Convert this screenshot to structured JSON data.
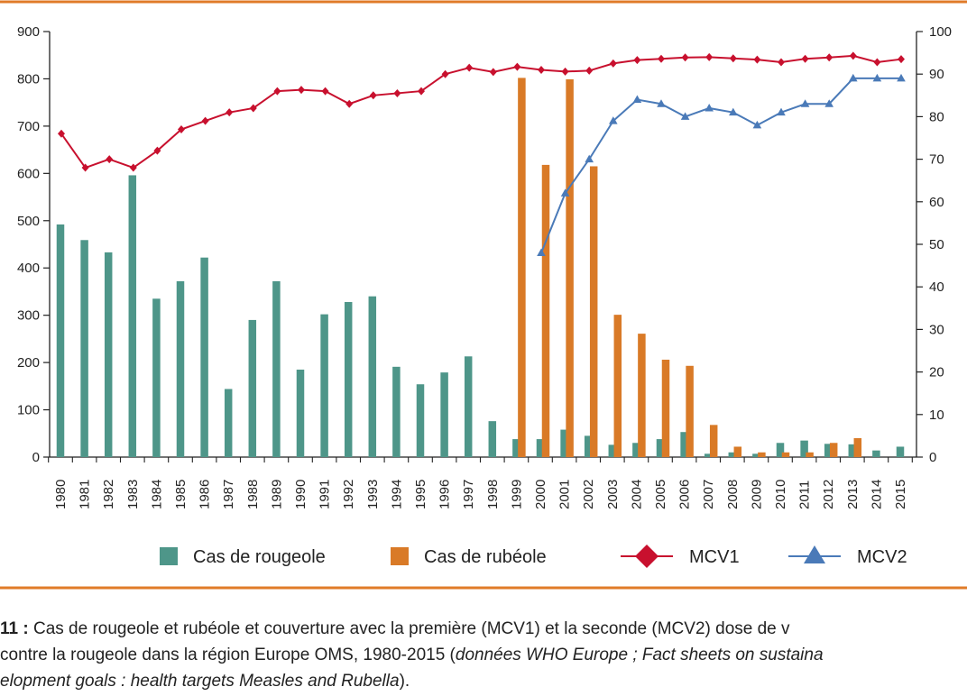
{
  "caption": {
    "figure_number": "11 :",
    "line1": " Cas de rougeole et rubéole et couverture avec la première (MCV1) et la seconde (MCV2) dose de v",
    "line2a": "contre la rougeole dans la région Europe OMS, 1980-2015 (",
    "line2b": "données WHO Europe ; Fact sheets on sustaina",
    "line3a": "elopment goals : health targets Measles and Rubella",
    "line3b": ")."
  },
  "colors": {
    "frame_orange": "#e07b28",
    "measles": "#4e9689",
    "rubella": "#d97a27",
    "mcv1": "#c8102e",
    "mcv2": "#4a7ab8",
    "axis": "#222222"
  },
  "chart_data": {
    "type": "bar",
    "categories": [
      "1980",
      "1981",
      "1982",
      "1983",
      "1984",
      "1985",
      "1986",
      "1987",
      "1988",
      "1989",
      "1990",
      "1991",
      "1992",
      "1993",
      "1994",
      "1995",
      "1996",
      "1997",
      "1998",
      "1999",
      "2000",
      "2001",
      "2002",
      "2003",
      "2004",
      "2005",
      "2006",
      "2007",
      "2008",
      "2009",
      "2010",
      "2011",
      "2012",
      "2013",
      "2014",
      "2015"
    ],
    "ylim_left": [
      0,
      900
    ],
    "yticks_left": [
      0,
      100,
      200,
      300,
      400,
      500,
      600,
      700,
      800,
      900
    ],
    "ylim_right": [
      0,
      100
    ],
    "yticks_right": [
      0,
      10,
      20,
      30,
      40,
      50,
      60,
      70,
      80,
      90,
      100
    ],
    "legend_position": "bottom",
    "series": [
      {
        "name": "Cas de rougeole",
        "kind": "bar",
        "axis": "left",
        "values": [
          492,
          459,
          433,
          596,
          335,
          372,
          422,
          144,
          290,
          372,
          185,
          302,
          328,
          340,
          191,
          154,
          179,
          213,
          76,
          38,
          38,
          58,
          45,
          26,
          30,
          38,
          53,
          7,
          10,
          7,
          30,
          35,
          28,
          27,
          14,
          22
        ]
      },
      {
        "name": "Cas de rubéole",
        "kind": "bar",
        "axis": "left",
        "values": [
          null,
          null,
          null,
          null,
          null,
          null,
          null,
          null,
          null,
          null,
          null,
          null,
          null,
          null,
          null,
          null,
          null,
          null,
          null,
          802,
          618,
          799,
          615,
          301,
          261,
          206,
          193,
          68,
          22,
          10,
          10,
          10,
          30,
          40,
          null,
          null
        ]
      },
      {
        "name": "MCV1",
        "kind": "line",
        "marker": "diamond",
        "axis": "right",
        "values": [
          76,
          68,
          70,
          68,
          72,
          77,
          79,
          81,
          82,
          86,
          86.3,
          86,
          83,
          85,
          85.5,
          86,
          90,
          91.5,
          90.5,
          91.7,
          91,
          90.6,
          90.8,
          92.5,
          93.3,
          93.6,
          93.9,
          94,
          93.7,
          93.4,
          92.8,
          93.6,
          93.9,
          94.3,
          92.8,
          93.5
        ]
      },
      {
        "name": "MCV2",
        "kind": "line",
        "marker": "triangle",
        "axis": "right",
        "values": [
          null,
          null,
          null,
          null,
          null,
          null,
          null,
          null,
          null,
          null,
          null,
          null,
          null,
          null,
          null,
          null,
          null,
          null,
          null,
          null,
          48,
          62,
          70,
          79,
          84,
          83,
          80,
          82,
          81,
          78,
          81,
          83,
          83,
          89,
          89,
          89
        ]
      }
    ]
  }
}
